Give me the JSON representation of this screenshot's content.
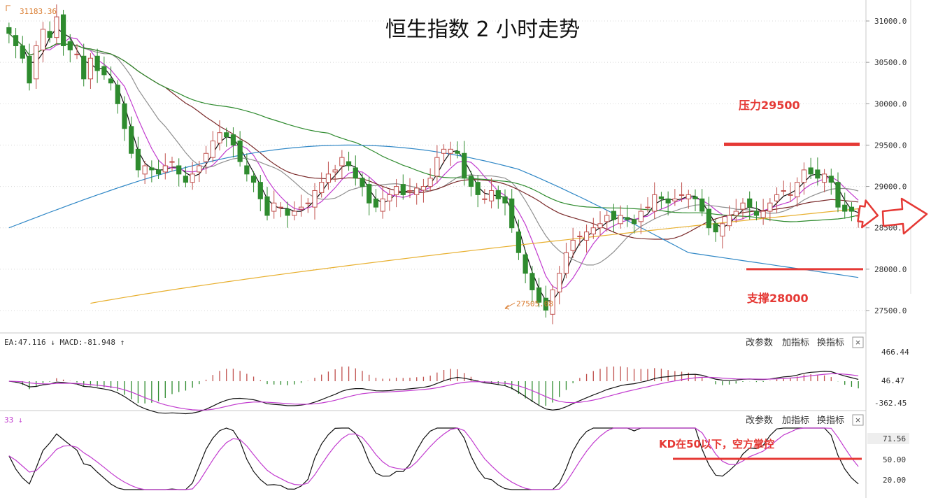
{
  "title": "恒生指数 2 小时走势",
  "annotations": {
    "resistance_label": "压力29500",
    "support_label": "支撑28000",
    "kd_note": "KD在50以下，空方掌控",
    "high_label": "31183.36",
    "low_label": "27505.08"
  },
  "colors": {
    "up": "#c0504d",
    "down": "#2e8b2e",
    "annotation_red": "#e53935",
    "ma_black": "#111111",
    "ma_magenta": "#c23ccf",
    "ma_gray": "#8f8f8f",
    "ma_brown": "#7a2a2a",
    "ma_green": "#2d8a2d",
    "ma_blue": "#2f87c6",
    "ma_orange": "#e8b030",
    "axis_text": "#333333"
  },
  "toolbar": {
    "change_params": "改参数",
    "add_indicator": "加指标",
    "swap_indicator": "换指标",
    "close_icon": "×"
  },
  "macd_panel": {
    "readout": "EA:47.116 ↓  MACD:-81.948 ↑",
    "ticks": [
      "466.44",
      "46.47",
      "-362.45"
    ]
  },
  "kd_panel": {
    "readout": "33 ↓",
    "ticks": [
      "71.56",
      "50.00",
      "20.00"
    ],
    "threshold": 50
  },
  "chart_data": {
    "type": "candlestick",
    "title": "恒生指数 2 小时走势",
    "y_ticks": [
      "31000.0",
      "30500.0",
      "30000.0",
      "29500.0",
      "29000.0",
      "28500.0",
      "28000.0",
      "27500.0"
    ],
    "ylim": [
      27300,
      31300
    ],
    "levels": [
      {
        "name": "压力29500",
        "value": 29500
      },
      {
        "name": "支撑28000",
        "value": 28000
      }
    ],
    "close": [
      30850,
      30700,
      30550,
      30250,
      30700,
      30900,
      30800,
      31050,
      30700,
      30650,
      30600,
      30300,
      30550,
      30400,
      30350,
      30250,
      30000,
      29700,
      29400,
      29200,
      29250,
      29200,
      29150,
      29250,
      29300,
      29150,
      29050,
      29150,
      29250,
      29400,
      29550,
      29650,
      29600,
      29500,
      29300,
      29150,
      29050,
      28850,
      28650,
      28800,
      28750,
      28650,
      28700,
      28750,
      28800,
      28950,
      29050,
      29150,
      29200,
      29350,
      29250,
      29100,
      29000,
      28800,
      28750,
      28850,
      28900,
      29000,
      28900,
      28950,
      28980,
      29000,
      29100,
      29350,
      29450,
      29450,
      29400,
      29100,
      29000,
      28900,
      28850,
      28950,
      28850,
      28800,
      28500,
      28200,
      27950,
      27750,
      27600,
      27505,
      27750,
      27950,
      28200,
      28350,
      28400,
      28450,
      28500,
      28550,
      28650,
      28600,
      28650,
      28600,
      28550,
      28700,
      28750,
      28900,
      28850,
      28800,
      28850,
      28900,
      28900,
      28850,
      28700,
      28500,
      28450,
      28550,
      28650,
      28700,
      28800,
      28750,
      28650,
      28700,
      28800,
      28900,
      28950,
      28900,
      29050,
      29200,
      29150,
      29100,
      29150,
      29050,
      28750,
      28700,
      28700,
      28650
    ]
  }
}
